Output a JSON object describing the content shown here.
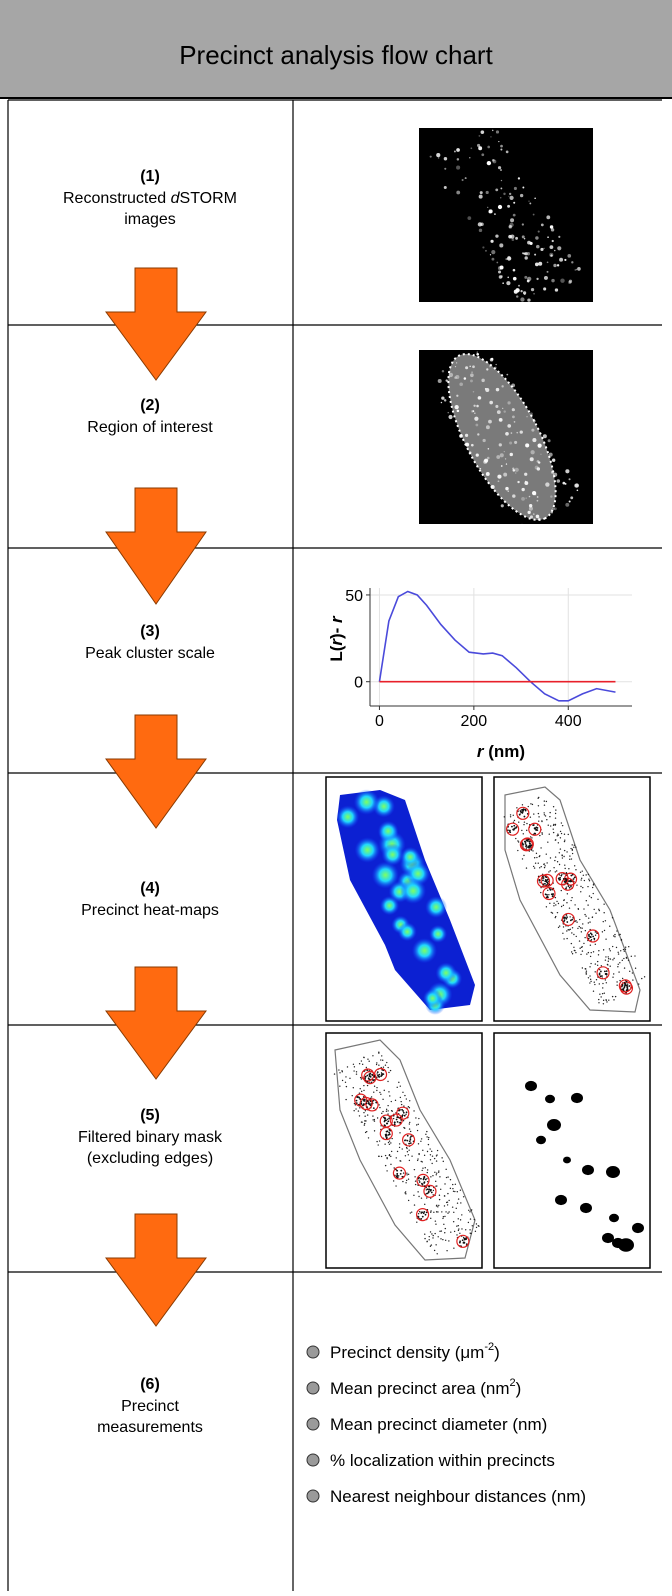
{
  "header": {
    "title": "Precinct analysis flow chart"
  },
  "rows": [
    {
      "number": "(1)",
      "lines": [
        [
          "Reconstructed ",
          "d",
          "STORM"
        ],
        [
          "images"
        ]
      ]
    },
    {
      "number": "(2)",
      "lines": [
        [
          "Region of interest"
        ]
      ]
    },
    {
      "number": "(3)",
      "lines": [
        [
          "Peak cluster scale"
        ]
      ]
    },
    {
      "number": "(4)",
      "lines": [
        [
          "Precinct heat-maps"
        ]
      ]
    },
    {
      "number": "(5)",
      "lines": [
        [
          "Filtered binary mask"
        ],
        [
          "(excluding edges)"
        ]
      ]
    },
    {
      "number": "(6)",
      "lines": [
        [
          "Precinct"
        ],
        [
          "measurements"
        ]
      ]
    }
  ],
  "plot": {
    "type": "line",
    "y_label": [
      "L(",
      "r",
      ")- ",
      "r"
    ],
    "x_label": [
      "r",
      " (nm)"
    ],
    "xlim": [
      -20,
      535
    ],
    "ylim": [
      -14,
      54
    ],
    "xticks": [
      0,
      200,
      400
    ],
    "yticks": [
      0,
      50
    ],
    "grid": true,
    "series": [
      {
        "color": "#4a4adb",
        "x": [
          0,
          20,
          40,
          60,
          80,
          100,
          130,
          160,
          190,
          220,
          240,
          260,
          290,
          320,
          350,
          380,
          400,
          430,
          460,
          500
        ],
        "values": [
          0,
          35,
          49,
          52,
          50,
          44,
          33,
          24,
          17,
          16,
          16.5,
          15,
          8,
          0,
          -7,
          -11,
          -11,
          -7,
          -4,
          -6
        ]
      },
      {
        "color": "#e8202a",
        "x": [
          0,
          500
        ],
        "values": [
          0,
          0
        ]
      }
    ]
  },
  "measurements": [
    {
      "text": "Precinct density (μm",
      "sup": "-2",
      "tail": ")"
    },
    {
      "text": "Mean precinct area (nm",
      "sup": "2",
      "tail": ")"
    },
    {
      "text": "Mean precinct diameter (nm)"
    },
    {
      "text": "% localization within precincts"
    },
    {
      "text": "Nearest neighbour distances (nm)"
    }
  ]
}
